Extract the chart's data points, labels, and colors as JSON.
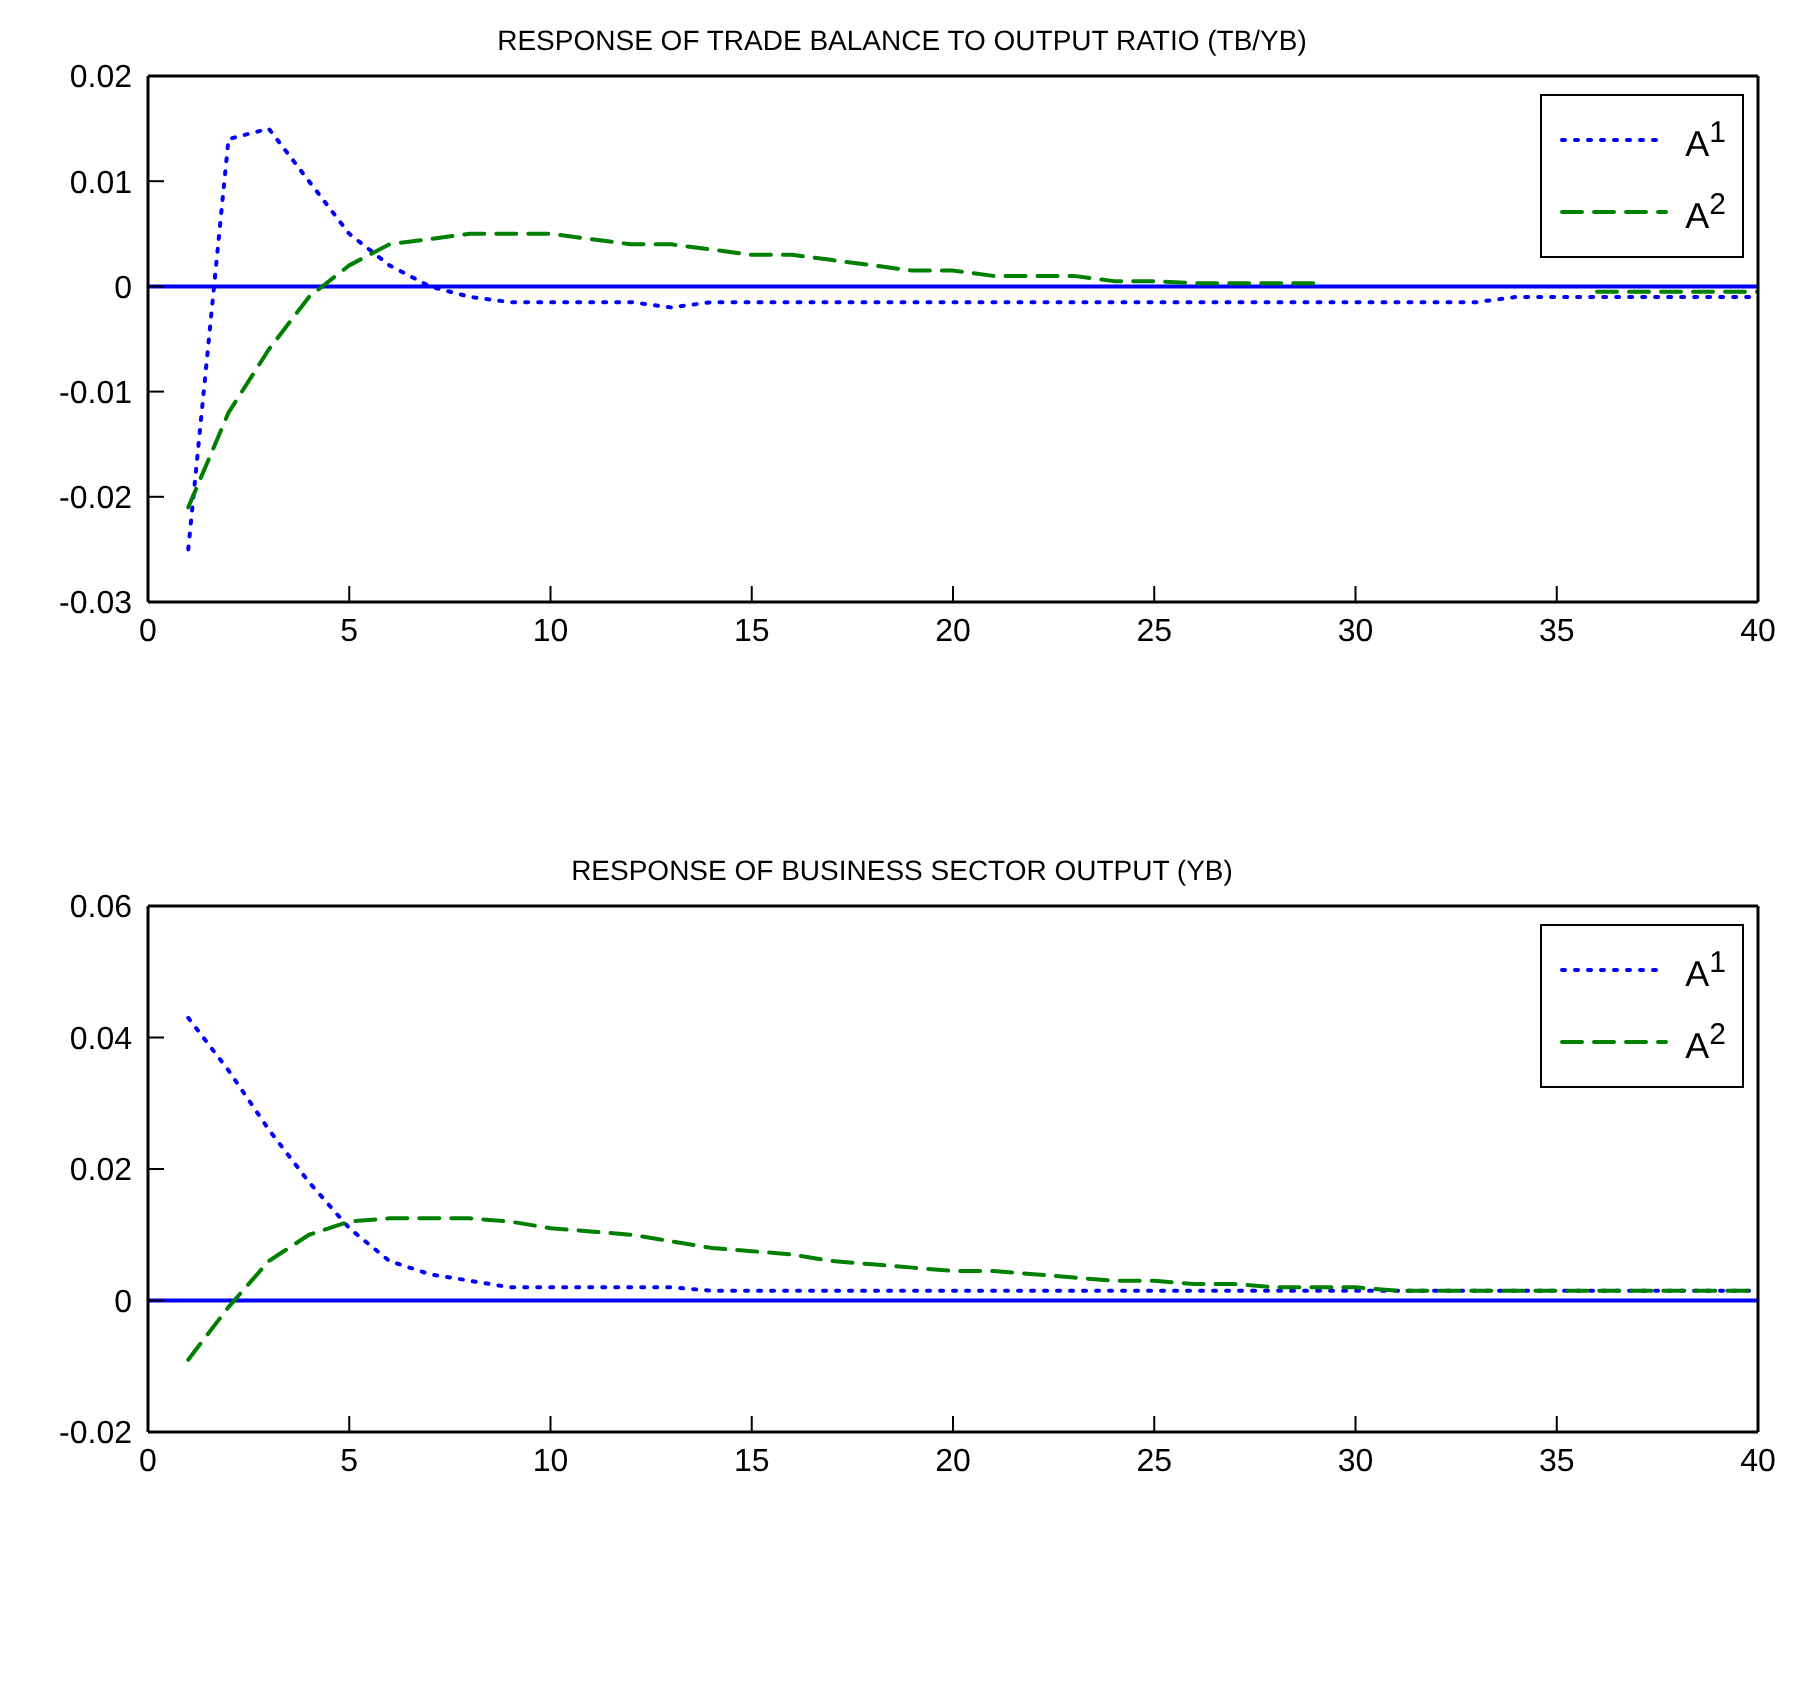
{
  "chart_data": [
    {
      "type": "line",
      "title": "RESPONSE OF TRADE BALANCE TO OUTPUT RATIO (TB/YB)",
      "x": [
        1,
        2,
        3,
        4,
        5,
        6,
        7,
        8,
        9,
        10,
        11,
        12,
        13,
        14,
        15,
        16,
        17,
        18,
        19,
        20,
        21,
        22,
        23,
        24,
        25,
        26,
        27,
        28,
        29,
        30,
        31,
        32,
        33,
        34,
        35,
        36,
        37,
        38,
        39,
        40
      ],
      "xlim": [
        0,
        40
      ],
      "xticks": [
        0,
        5,
        10,
        15,
        20,
        25,
        30,
        35,
        40
      ],
      "ylim": [
        -0.03,
        0.02
      ],
      "yticks": [
        -0.03,
        -0.02,
        -0.01,
        0,
        0.01,
        0.02
      ],
      "legend": "top right",
      "marker": "none",
      "grid": false,
      "series": [
        {
          "name": "A$^{1}$",
          "color": "#0000ff",
          "line_style": "dotted",
          "values": [
            -0.025,
            0.014,
            0.015,
            0.01,
            0.005,
            0.002,
            0,
            -0.001,
            -0.0015,
            -0.0015,
            -0.0015,
            -0.0015,
            -0.002,
            -0.0015,
            -0.0015,
            -0.0015,
            -0.0015,
            -0.0015,
            -0.0015,
            -0.0015,
            -0.0015,
            -0.0015,
            -0.0015,
            -0.0015,
            -0.0015,
            -0.0015,
            -0.0015,
            -0.0015,
            -0.0015,
            -0.0015,
            -0.0015,
            -0.0015,
            -0.0015,
            -0.001,
            -0.001,
            -0.001,
            -0.001,
            -0.001,
            -0.001,
            -0.001
          ]
        },
        {
          "name": "A$^{2}$",
          "color": "#008000",
          "line_style": "dashed",
          "values": [
            -0.021,
            -0.012,
            -0.006,
            -0.001,
            0.002,
            0.004,
            0.0045,
            0.005,
            0.005,
            0.005,
            0.0045,
            0.004,
            0.004,
            0.0035,
            0.003,
            0.003,
            0.0025,
            0.002,
            0.0015,
            0.0015,
            0.001,
            0.001,
            0.001,
            0.0005,
            0.0005,
            0.0003,
            0.0003,
            0.0003,
            0.0003,
            null,
            null,
            null,
            null,
            null,
            null,
            -0.0005,
            -0.0005,
            -0.0005,
            -0.0005,
            -0.0005
          ]
        }
      ],
      "ref_lines": [
        {
          "axis": "y",
          "value": 0,
          "color": "#0000ff",
          "line_style": "solid"
        }
      ]
    },
    {
      "type": "line",
      "title": "RESPONSE OF BUSINESS SECTOR OUTPUT (YB)",
      "x": [
        1,
        2,
        3,
        4,
        5,
        6,
        7,
        8,
        9,
        10,
        11,
        12,
        13,
        14,
        15,
        16,
        17,
        18,
        19,
        20,
        21,
        22,
        23,
        24,
        25,
        26,
        27,
        28,
        29,
        30,
        31,
        32,
        33,
        34,
        35,
        36,
        37,
        38,
        39,
        40
      ],
      "xlim": [
        0,
        40
      ],
      "xticks": [
        0,
        5,
        10,
        15,
        20,
        25,
        30,
        35,
        40
      ],
      "ylim": [
        -0.02,
        0.06
      ],
      "yticks": [
        -0.02,
        0,
        0.02,
        0.04,
        0.06
      ],
      "legend": "top right",
      "marker": "none",
      "grid": false,
      "series": [
        {
          "name": "A$^{1}$",
          "color": "#0000ff",
          "line_style": "dotted",
          "values": [
            0.043,
            0.035,
            0.026,
            0.018,
            0.011,
            0.006,
            0.004,
            0.003,
            0.002,
            0.002,
            0.002,
            0.002,
            0.002,
            0.0015,
            0.0015,
            0.0015,
            0.0015,
            0.0015,
            0.0015,
            0.0015,
            0.0015,
            0.0015,
            0.0015,
            0.0015,
            0.0015,
            0.0015,
            0.0015,
            0.0015,
            0.0015,
            0.0015,
            0.0015,
            0.0015,
            0.0015,
            0.0015,
            0.0015,
            0.0015,
            0.0015,
            0.0015,
            0.0015,
            0.0015
          ]
        },
        {
          "name": "A$^{2}$",
          "color": "#008000",
          "line_style": "dashed",
          "values": [
            -0.009,
            -0.001,
            0.006,
            0.01,
            0.012,
            0.0125,
            0.0125,
            0.0125,
            0.012,
            0.011,
            0.0105,
            0.01,
            0.009,
            0.008,
            0.0075,
            0.007,
            0.006,
            0.0055,
            0.005,
            0.0045,
            0.0045,
            0.004,
            0.0035,
            0.003,
            0.003,
            0.0025,
            0.0025,
            0.002,
            0.002,
            0.002,
            0.0015,
            0.0015,
            0.0015,
            0.0015,
            0.0015,
            0.0015,
            0.0015,
            0.0015,
            0.0015,
            0.0015
          ]
        }
      ],
      "ref_lines": [
        {
          "axis": "y",
          "value": 0,
          "color": "#0000ff",
          "line_style": "solid"
        }
      ]
    }
  ]
}
